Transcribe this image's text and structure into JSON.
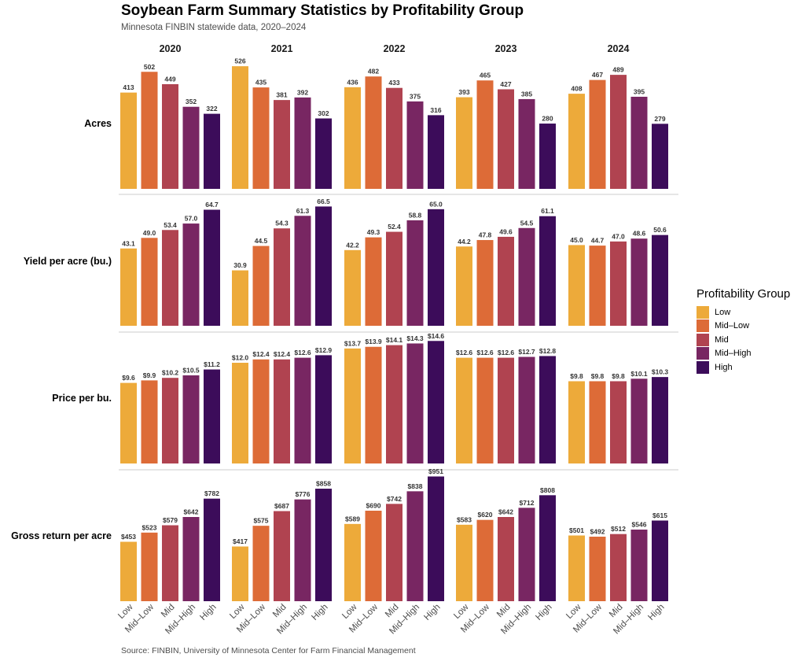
{
  "chart_data": {
    "type": "bar",
    "title": "Soybean Farm Summary Statistics by Profitability Group",
    "subtitle": "Minnesota FINBIN statewide data, 2020–2024",
    "caption": "Source: FINBIN, University of Minnesota Center for Farm Financial Management",
    "legend_title": "Profitability Group",
    "legend_position": "right",
    "groups": [
      "Low",
      "Mid–Low",
      "Mid",
      "Mid–High",
      "High"
    ],
    "colors": [
      "#EDAA3A",
      "#DD6B37",
      "#B04350",
      "#782662",
      "#3C0C5A"
    ],
    "years": [
      "2020",
      "2021",
      "2022",
      "2023",
      "2024"
    ],
    "metrics": [
      {
        "name": "Acres",
        "ymax": 540,
        "labels": [
          [
            "413",
            "502",
            "449",
            "352",
            "322"
          ],
          [
            "526",
            "435",
            "381",
            "392",
            "302"
          ],
          [
            "436",
            "482",
            "433",
            "375",
            "316"
          ],
          [
            "393",
            "465",
            "427",
            "385",
            "280"
          ],
          [
            "408",
            "467",
            "489",
            "395",
            "279"
          ]
        ],
        "values": [
          [
            413,
            502,
            449,
            352,
            322
          ],
          [
            526,
            435,
            381,
            392,
            302
          ],
          [
            436,
            482,
            433,
            375,
            316
          ],
          [
            393,
            465,
            427,
            385,
            280
          ],
          [
            408,
            467,
            489,
            395,
            279
          ]
        ]
      },
      {
        "name": "Yield per acre (bu.)",
        "ymax": 68,
        "labels": [
          [
            "43.1",
            "49.0",
            "53.4",
            "57.0",
            "64.7"
          ],
          [
            "30.9",
            "44.5",
            "54.3",
            "61.3",
            "66.5"
          ],
          [
            "42.2",
            "49.3",
            "52.4",
            "58.8",
            "65.0"
          ],
          [
            "44.2",
            "47.8",
            "49.6",
            "54.5",
            "61.1"
          ],
          [
            "45.0",
            "44.7",
            "47.0",
            "48.6",
            "50.6"
          ]
        ],
        "values": [
          [
            43.1,
            49.0,
            53.4,
            57.0,
            64.7
          ],
          [
            30.9,
            44.5,
            54.3,
            61.3,
            66.5
          ],
          [
            42.2,
            49.3,
            52.4,
            58.8,
            65.0
          ],
          [
            44.2,
            47.8,
            49.6,
            54.5,
            61.1
          ],
          [
            45.0,
            44.7,
            47.0,
            48.6,
            50.6
          ]
        ]
      },
      {
        "name": "Price per bu.",
        "ymax": 15.0,
        "labels": [
          [
            "$9.6",
            "$9.9",
            "$10.2",
            "$10.5",
            "$11.2"
          ],
          [
            "$12.0",
            "$12.4",
            "$12.4",
            "$12.6",
            "$12.9"
          ],
          [
            "$13.7",
            "$13.9",
            "$14.1",
            "$14.3",
            "$14.6"
          ],
          [
            "$12.6",
            "$12.6",
            "$12.6",
            "$12.7",
            "$12.8"
          ],
          [
            "$9.8",
            "$9.8",
            "$9.8",
            "$10.1",
            "$10.3"
          ]
        ],
        "values": [
          [
            9.6,
            9.9,
            10.2,
            10.5,
            11.2
          ],
          [
            12.0,
            12.4,
            12.4,
            12.6,
            12.9
          ],
          [
            13.7,
            13.9,
            14.1,
            14.3,
            14.6
          ],
          [
            12.6,
            12.6,
            12.6,
            12.7,
            12.8
          ],
          [
            9.8,
            9.8,
            9.8,
            10.1,
            10.3
          ]
        ]
      },
      {
        "name": "Gross return per acre",
        "ymax": 960,
        "labels": [
          [
            "$453",
            "$523",
            "$579",
            "$642",
            "$782"
          ],
          [
            "$417",
            "$575",
            "$687",
            "$776",
            "$858"
          ],
          [
            "$589",
            "$690",
            "$742",
            "$838",
            "$951"
          ],
          [
            "$583",
            "$620",
            "$642",
            "$712",
            "$808"
          ],
          [
            "$501",
            "$492",
            "$512",
            "$546",
            "$615"
          ]
        ],
        "values": [
          [
            453,
            523,
            579,
            642,
            782
          ],
          [
            417,
            575,
            687,
            776,
            858
          ],
          [
            589,
            690,
            742,
            838,
            951
          ],
          [
            583,
            620,
            642,
            712,
            808
          ],
          [
            501,
            492,
            512,
            546,
            615
          ]
        ]
      }
    ]
  }
}
